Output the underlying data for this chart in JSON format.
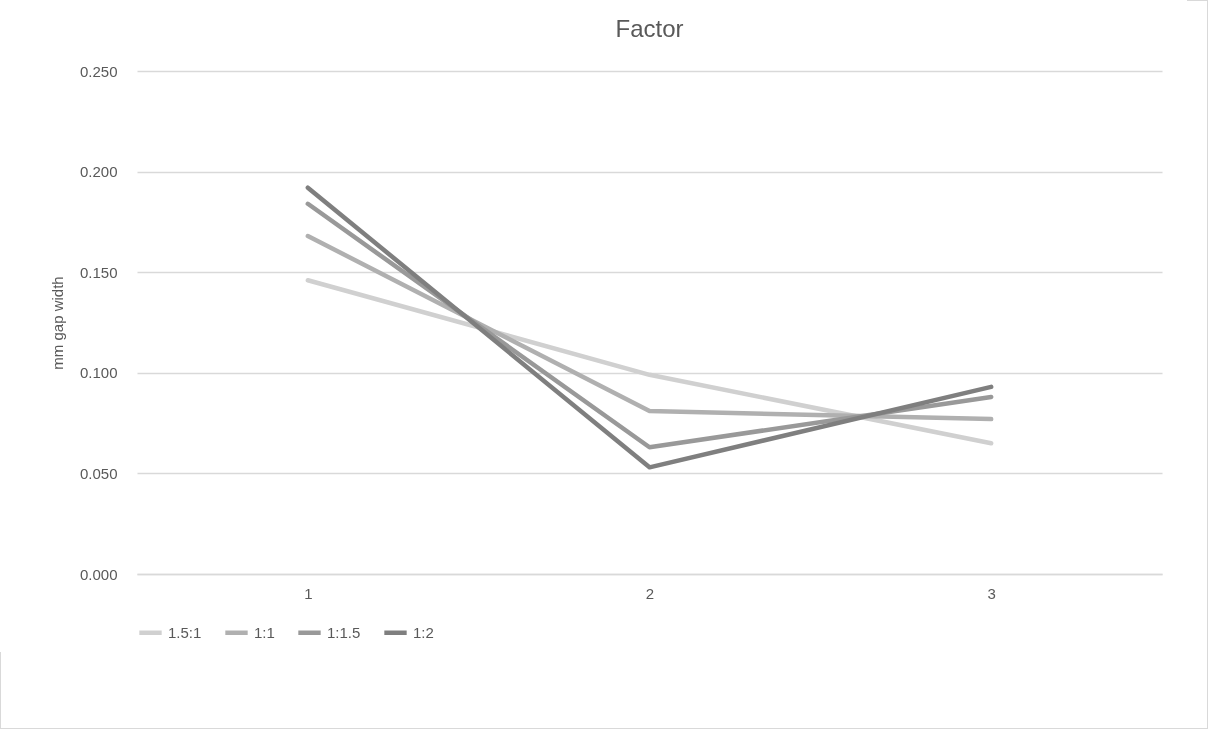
{
  "chart_data": {
    "type": "line",
    "title": "Factor",
    "ylabel": "mm gap width",
    "categories": [
      "1",
      "2",
      "3"
    ],
    "series": [
      {
        "name": "1.5:1",
        "color": "#d0d0d0",
        "values": [
          0.146,
          0.099,
          0.065
        ]
      },
      {
        "name": "1:1",
        "color": "#b0b0b0",
        "values": [
          0.168,
          0.081,
          0.077
        ]
      },
      {
        "name": "1:1.5",
        "color": "#999999",
        "values": [
          0.184,
          0.063,
          0.088
        ]
      },
      {
        "name": "1:2",
        "color": "#7f7f7f",
        "values": [
          0.192,
          0.053,
          0.093
        ]
      }
    ],
    "ylim": [
      0,
      0.25
    ],
    "yticks": [
      {
        "value": 0,
        "label": "0.000"
      },
      {
        "value": 0.05,
        "label": "0.050"
      },
      {
        "value": 0.1,
        "label": "0.100"
      },
      {
        "value": 0.15,
        "label": "0.150"
      },
      {
        "value": 0.2,
        "label": "0.200"
      },
      {
        "value": 0.25,
        "label": "0.250"
      }
    ],
    "grid": "y",
    "legend": "bottom",
    "marker": "none",
    "line_style": "solid"
  }
}
